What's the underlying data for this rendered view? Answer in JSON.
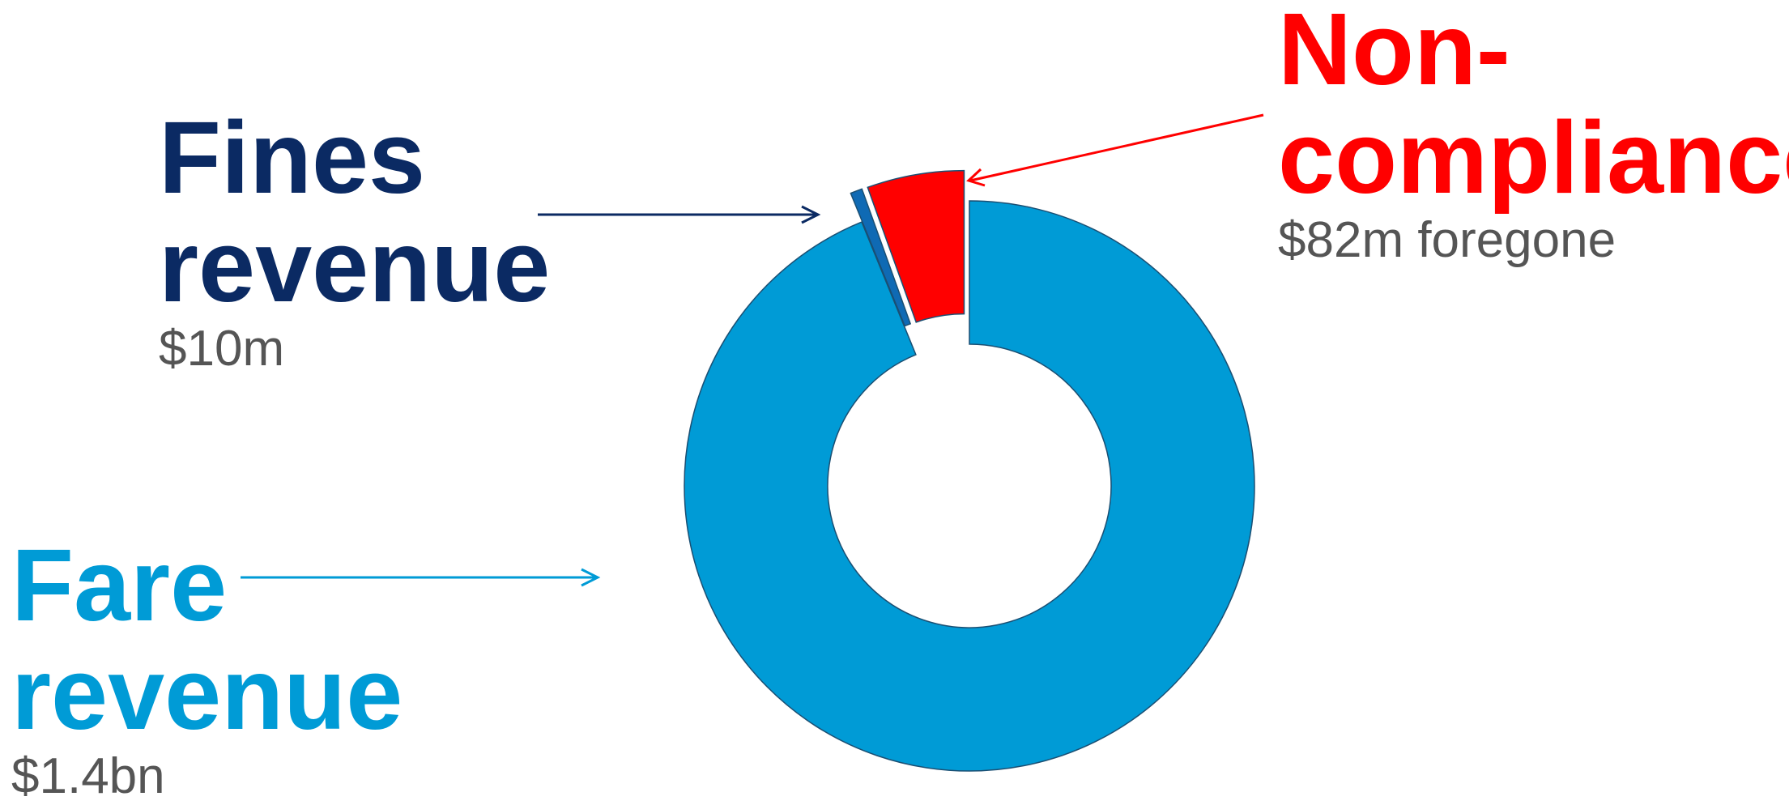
{
  "chart_data": {
    "type": "pie",
    "variant": "donut",
    "slices": [
      {
        "name_lines": [
          "Fare",
          "revenue"
        ],
        "amount_label": "$1.4bn",
        "value": 1400,
        "color": "#009bd6",
        "exploded": false
      },
      {
        "name_lines": [
          "Fines",
          "revenue"
        ],
        "amount_label": "$10m",
        "value": 10,
        "color": "#0f6ab4",
        "exploded": true
      },
      {
        "name_lines": [
          "Non-",
          "compliance"
        ],
        "amount_label": "$82m foregone",
        "value": 82,
        "color": "#ff0000",
        "exploded": true
      }
    ],
    "label_colors": {
      "fare": "#009bd6",
      "fines": "#0b2a63",
      "noncompliance": "#ff0000"
    },
    "outline_color": "#1a4f73",
    "legend": "none"
  }
}
